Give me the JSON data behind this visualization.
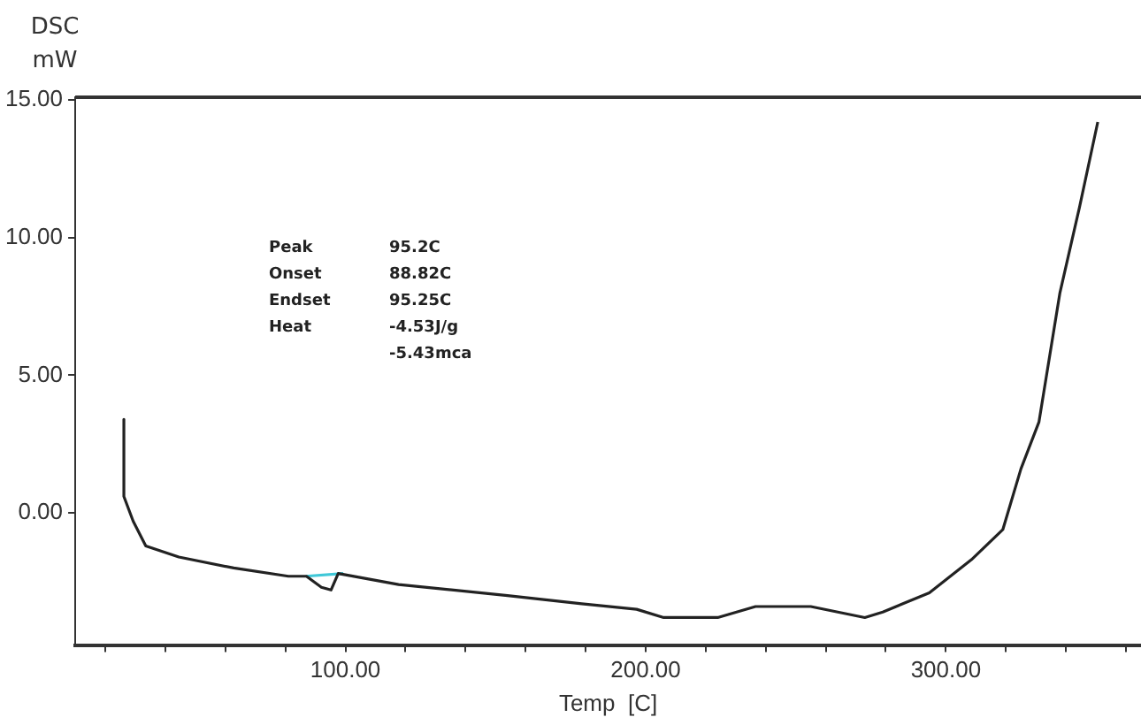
{
  "chart_data": {
    "type": "line",
    "ylabel": "DSC mW",
    "xlabel": "Temp  [C]",
    "annotations": [
      "Peak 95.2C",
      "Onset 88.82C",
      "Endset 95.25C",
      "Heat -4.53J/g",
      "-5.43mca"
    ],
    "xlim": [
      10,
      365
    ],
    "ylim": [
      -4.8,
      15.1
    ],
    "xticks": [
      {
        "value": 20,
        "label": null
      },
      {
        "value": 40,
        "label": null
      },
      {
        "value": 60,
        "label": null
      },
      {
        "value": 80,
        "label": null
      },
      {
        "value": 100,
        "label": "100.00"
      },
      {
        "value": 120,
        "label": null
      },
      {
        "value": 140,
        "label": null
      },
      {
        "value": 160,
        "label": null
      },
      {
        "value": 180,
        "label": null
      },
      {
        "value": 200,
        "label": "200.00"
      },
      {
        "value": 220,
        "label": null
      },
      {
        "value": 240,
        "label": null
      },
      {
        "value": 260,
        "label": null
      },
      {
        "value": 280,
        "label": null
      },
      {
        "value": 300,
        "label": "300.00"
      },
      {
        "value": 320,
        "label": null
      },
      {
        "value": 340,
        "label": null
      },
      {
        "value": 360,
        "label": null
      }
    ],
    "yticks": [
      {
        "value": 0,
        "label": "0.00"
      },
      {
        "value": 5,
        "label": "5.00"
      },
      {
        "value": 10,
        "label": "10.00"
      },
      {
        "value": 15,
        "label": "15.00"
      }
    ],
    "grid": false,
    "legend": false,
    "marker": "none",
    "line_style": "solid",
    "series": [
      {
        "color": "#222222",
        "x": [
          26.2,
          26.2,
          29.3,
          33.5,
          44.5,
          62.8,
          81,
          87,
          92,
          95.2,
          97.6,
          117.7,
          154,
          178.7,
          197,
          206,
          224,
          236.6,
          255,
          264,
          273,
          279,
          294.5,
          308.5,
          319,
          325,
          331,
          338,
          344.5,
          350.6
        ],
        "values": [
          3.4,
          0.6,
          -0.3,
          -1.2,
          -1.6,
          -2.0,
          -2.3,
          -2.3,
          -2.7,
          -2.8,
          -2.2,
          -2.6,
          -3.0,
          -3.3,
          -3.5,
          -3.8,
          -3.8,
          -3.4,
          -3.4,
          -3.6,
          -3.8,
          -3.6,
          -2.9,
          -1.7,
          -0.6,
          1.6,
          3.3,
          8.0,
          11.1,
          14.2
        ]
      },
      {
        "color": "#40c8d8",
        "x": [
          86.8,
          99.3
        ],
        "values": [
          -2.3,
          -2.2
        ]
      }
    ]
  }
}
